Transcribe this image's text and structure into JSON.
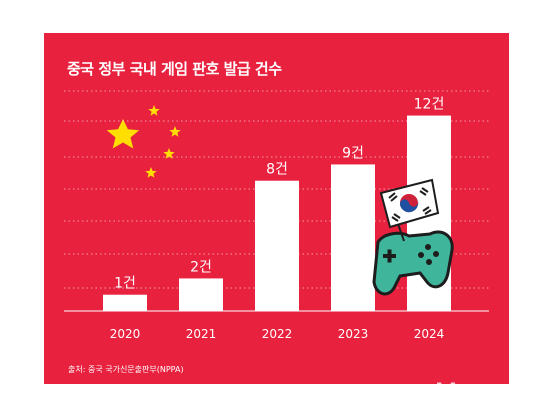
{
  "chart_data": {
    "type": "bar",
    "title": "중국 정부 국내 게임 판호 발급 건수",
    "categories": [
      "2020",
      "2021",
      "2022",
      "2023",
      "2024"
    ],
    "values": [
      1,
      2,
      8,
      9,
      12
    ],
    "value_labels": [
      "1건",
      "2건",
      "8건",
      "9건",
      "12건"
    ],
    "xlabel": "",
    "ylabel": "",
    "ylim": [
      0,
      14
    ],
    "grid": true,
    "source": "출처: 중국 국가신문출판부(NPPA)",
    "colors": {
      "background": "#e8213f",
      "bar": "#ffffff",
      "text": "#ffffff",
      "star": "#ffde00"
    }
  },
  "watermark": "MoneyS"
}
